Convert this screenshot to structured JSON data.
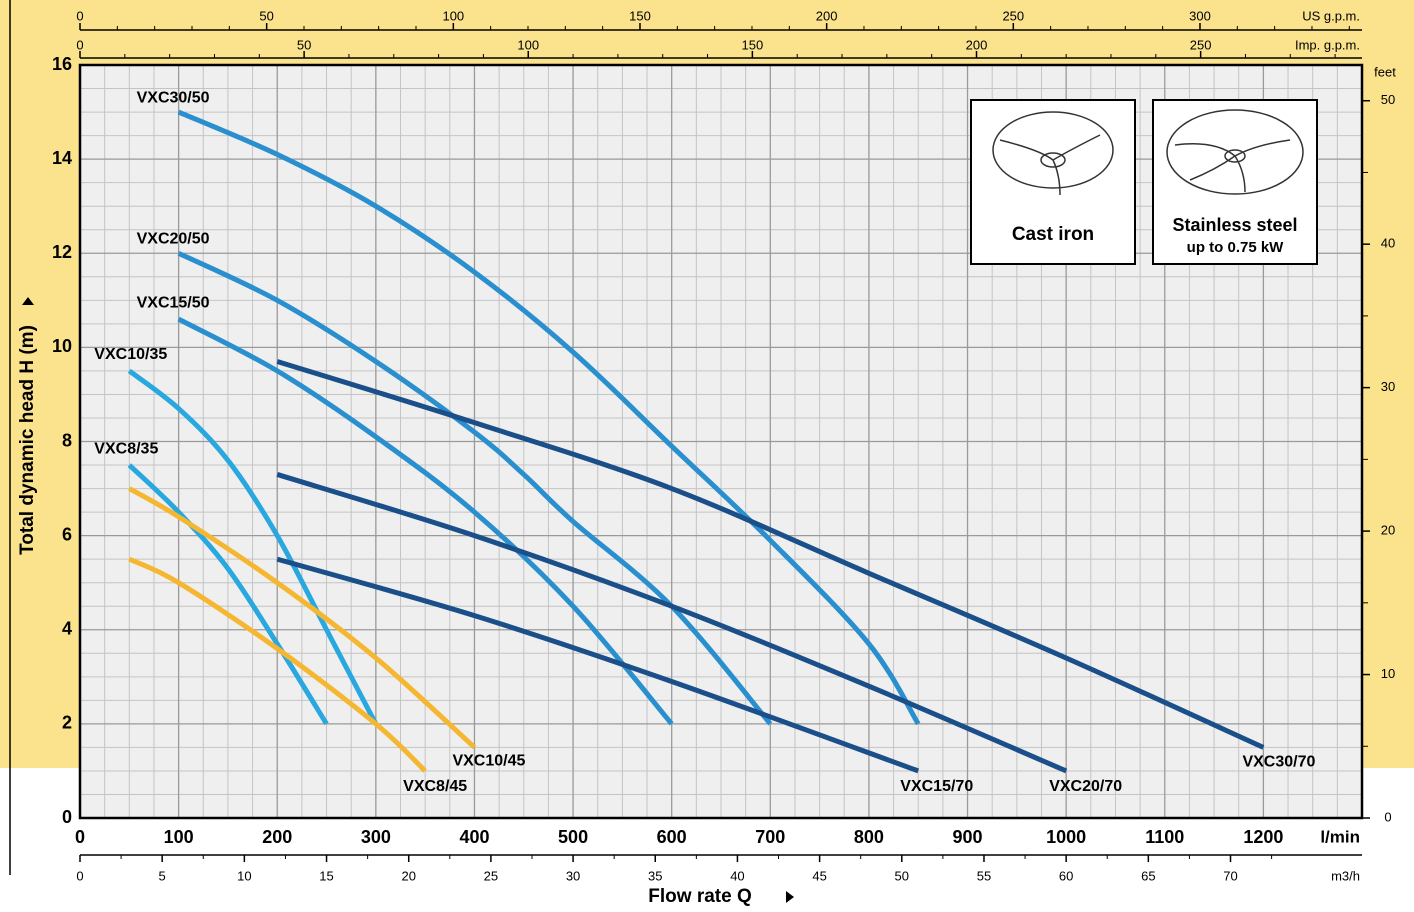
{
  "chart_data": {
    "type": "line",
    "x_label": "Flow rate Q",
    "y_label": "Total dynamic head H (m)",
    "x_unit": "l/min",
    "xlim": [
      0,
      1300
    ],
    "ylim": [
      0,
      16
    ],
    "xticks": [
      0,
      100,
      200,
      300,
      400,
      500,
      600,
      700,
      800,
      900,
      1000,
      1100,
      1200
    ],
    "yticks": [
      0,
      2,
      4,
      6,
      8,
      10,
      12,
      14,
      16
    ],
    "grid": true,
    "secondary_axes": [
      {
        "position": "top",
        "label": "US g.p.m.",
        "lim": [
          0,
          343.4
        ],
        "ticks": [
          0,
          50,
          100,
          150,
          200,
          250,
          300
        ]
      },
      {
        "position": "top",
        "label": "Imp. g.p.m.",
        "lim": [
          0,
          286
        ],
        "ticks": [
          0,
          50,
          100,
          150,
          200,
          250
        ]
      },
      {
        "position": "bottom",
        "label": "m3/h",
        "lim": [
          0,
          78
        ],
        "ticks": [
          0,
          5,
          10,
          15,
          20,
          25,
          30,
          35,
          40,
          45,
          50,
          55,
          60,
          65,
          70
        ]
      },
      {
        "position": "right",
        "label": "feet",
        "lim": [
          0,
          52.49
        ],
        "ticks": [
          0,
          10,
          20,
          30,
          40,
          50
        ]
      }
    ],
    "series": [
      {
        "name": "VXC30/50",
        "color": "#2a8fcf",
        "x": [
          100,
          200,
          300,
          400,
          500,
          600,
          700,
          800,
          850
        ],
        "values": [
          15,
          14.1,
          13,
          11.6,
          9.9,
          7.9,
          5.9,
          3.7,
          2
        ]
      },
      {
        "name": "VXC20/50",
        "color": "#2a8fcf",
        "x": [
          100,
          200,
          300,
          400,
          450,
          500,
          600,
          700
        ],
        "values": [
          12,
          11,
          9.7,
          8.2,
          7.3,
          6.3,
          4.5,
          2
        ]
      },
      {
        "name": "VXC15/50",
        "color": "#2a8fcf",
        "x": [
          100,
          200,
          300,
          400,
          500,
          600
        ],
        "values": [
          10.6,
          9.5,
          8.1,
          6.5,
          4.5,
          2
        ]
      },
      {
        "name": "VXC10/35",
        "color": "#29a7df",
        "x": [
          50,
          100,
          150,
          200,
          250,
          300
        ],
        "values": [
          9.5,
          8.7,
          7.6,
          6,
          4,
          2
        ]
      },
      {
        "name": "VXC8/35",
        "color": "#29a7df",
        "x": [
          50,
          100,
          150,
          200,
          250
        ],
        "values": [
          7.5,
          6.5,
          5.3,
          3.7,
          2
        ]
      },
      {
        "name": "VXC10/45",
        "color": "#f5b731",
        "x": [
          50,
          100,
          200,
          300,
          400
        ],
        "values": [
          7,
          6.4,
          5,
          3.4,
          1.5
        ]
      },
      {
        "name": "VXC8/45",
        "color": "#f5b731",
        "x": [
          50,
          100,
          200,
          300,
          350
        ],
        "values": [
          5.5,
          5,
          3.6,
          2,
          1
        ]
      },
      {
        "name": "VXC30/70",
        "color": "#1a4f8a",
        "x": [
          200,
          400,
          600,
          800,
          1000,
          1200
        ],
        "values": [
          9.7,
          8.4,
          7,
          5.2,
          3.4,
          1.5
        ]
      },
      {
        "name": "VXC20/70",
        "color": "#1a4f8a",
        "x": [
          200,
          400,
          600,
          800,
          1000
        ],
        "values": [
          7.3,
          6,
          4.5,
          2.8,
          1
        ]
      },
      {
        "name": "VXC15/70",
        "color": "#1a4f8a",
        "x": [
          200,
          400,
          600,
          850
        ],
        "values": [
          5.5,
          4.3,
          2.9,
          1
        ]
      }
    ],
    "insets": [
      {
        "label": "Cast iron"
      },
      {
        "label": "Stainless steel",
        "sublabel": "up to 0.75 kW"
      }
    ]
  }
}
